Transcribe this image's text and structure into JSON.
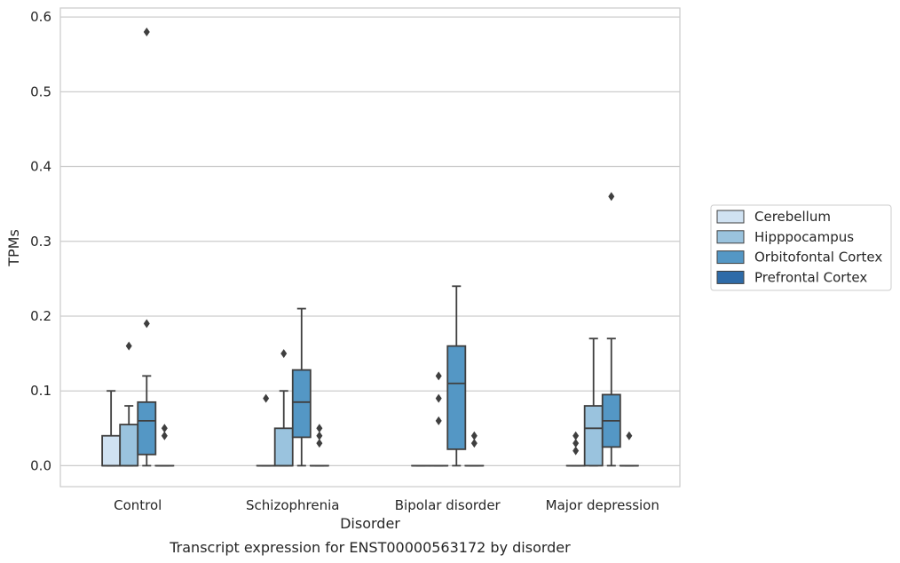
{
  "chart_data": {
    "type": "box",
    "caption": "Transcript expression for ENST00000563172 by disorder",
    "xlabel": "Disorder",
    "ylabel": "TPMs",
    "ylim": [
      -0.028,
      0.612
    ],
    "yticks": [
      0.0,
      0.1,
      0.2,
      0.3,
      0.4,
      0.5,
      0.6
    ],
    "ytick_labels": [
      "0.0",
      "0.1",
      "0.2",
      "0.3",
      "0.4",
      "0.5",
      "0.6"
    ],
    "grid": "horizontal",
    "legend_position": "right",
    "categories": [
      "Control",
      "Schizophrenia",
      "Bipolar disorder",
      "Major depression"
    ],
    "series": [
      {
        "name": "Cerebellum",
        "color": "#d0e2f2",
        "boxes": [
          {
            "min": 0.0,
            "q1": 0.0,
            "median": 0.0,
            "q3": 0.04,
            "max": 0.1,
            "outliers": []
          },
          {
            "min": 0.0,
            "q1": 0.0,
            "median": 0.0,
            "q3": 0.0,
            "max": 0.0,
            "outliers": [
              0.09
            ]
          },
          {
            "min": 0.0,
            "q1": 0.0,
            "median": 0.0,
            "q3": 0.0,
            "max": 0.0,
            "outliers": []
          },
          {
            "min": 0.0,
            "q1": 0.0,
            "median": 0.0,
            "q3": 0.0,
            "max": 0.0,
            "outliers": []
          }
        ]
      },
      {
        "name": "Hipppocampus",
        "color": "#9ac3de",
        "boxes": [
          {
            "min": 0.0,
            "q1": 0.0,
            "median": 0.0,
            "q3": 0.055,
            "max": 0.08,
            "outliers": [
              0.16
            ]
          },
          {
            "min": 0.0,
            "q1": 0.0,
            "median": 0.0,
            "q3": 0.05,
            "max": 0.1,
            "outliers": [
              0.15
            ]
          },
          {
            "min": 0.0,
            "q1": 0.0,
            "median": 0.0,
            "q3": 0.0,
            "max": 0.0,
            "outliers": [
              0.06,
              0.09,
              0.12
            ]
          },
          {
            "min": 0.0,
            "q1": 0.0,
            "median": 0.05,
            "q3": 0.08,
            "max": 0.17,
            "outliers": []
          }
        ]
      },
      {
        "name": "Orbitofontal Cortex",
        "color": "#5497c5",
        "boxes": [
          {
            "min": 0.0,
            "q1": 0.015,
            "median": 0.06,
            "q3": 0.085,
            "max": 0.12,
            "outliers": [
              0.19,
              0.58
            ]
          },
          {
            "min": 0.0,
            "q1": 0.038,
            "median": 0.085,
            "q3": 0.128,
            "max": 0.21,
            "outliers": []
          },
          {
            "min": 0.0,
            "q1": 0.022,
            "median": 0.11,
            "q3": 0.16,
            "max": 0.24,
            "outliers": []
          },
          {
            "min": 0.0,
            "q1": 0.025,
            "median": 0.06,
            "q3": 0.095,
            "max": 0.17,
            "outliers": [
              0.36
            ]
          }
        ]
      },
      {
        "name": "Prefrontal Cortex",
        "color": "#2e6ba8",
        "boxes": [
          {
            "min": 0.0,
            "q1": 0.0,
            "median": 0.0,
            "q3": 0.0,
            "max": 0.0,
            "outliers": [
              0.04,
              0.05
            ]
          },
          {
            "min": 0.0,
            "q1": 0.0,
            "median": 0.0,
            "q3": 0.0,
            "max": 0.0,
            "outliers": [
              0.03,
              0.04,
              0.05
            ]
          },
          {
            "min": 0.0,
            "q1": 0.0,
            "median": 0.0,
            "q3": 0.0,
            "max": 0.0,
            "outliers": [
              0.03,
              0.04
            ]
          },
          {
            "min": 0.0,
            "q1": 0.0,
            "median": 0.0,
            "q3": 0.0,
            "max": 0.0,
            "outliers": [
              0.04
            ]
          }
        ]
      }
    ]
  },
  "outlier_overrides": [
    {
      "category": 3,
      "series": 0,
      "values": [
        0.02,
        0.03,
        0.04
      ]
    }
  ]
}
